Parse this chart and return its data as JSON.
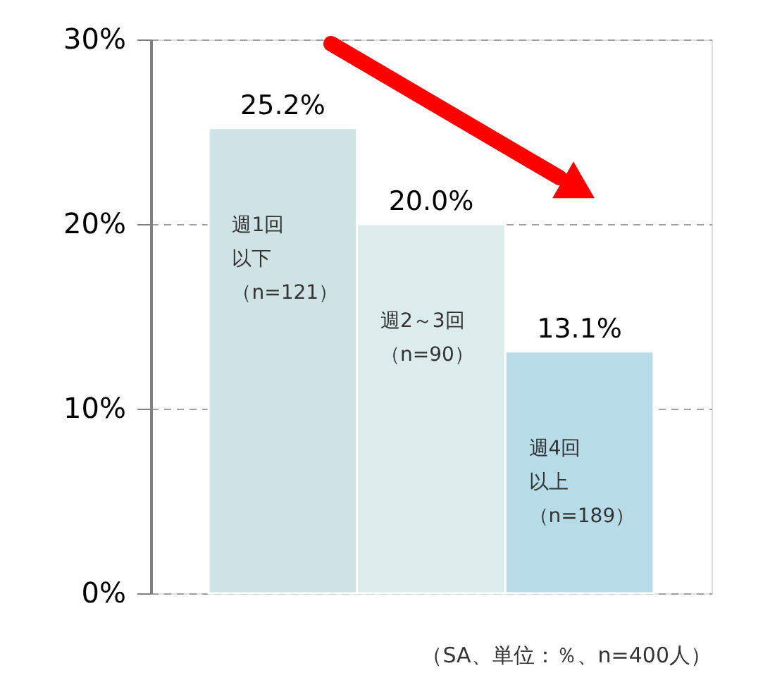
{
  "chart_data": {
    "type": "bar",
    "categories": [
      "週1回以下（n=121）",
      "週2～3回（n=90）",
      "週4回以上（n=189）"
    ],
    "values": [
      25.2,
      20.0,
      13.1
    ],
    "colors": [
      "#cfe3e4",
      "#dcecec",
      "#b7dce7"
    ],
    "value_labels": [
      "25.2%",
      "20.0%",
      "13.1%"
    ],
    "ylim": [
      0,
      30
    ],
    "yticks": [
      {
        "value": 0,
        "label": "0%"
      },
      {
        "value": 10,
        "label": "10%"
      },
      {
        "value": 20,
        "label": "20%"
      },
      {
        "value": 30,
        "label": "30%"
      }
    ],
    "grid": "y",
    "annotations": [
      "（SA、単位：％、n=400人）"
    ]
  }
}
